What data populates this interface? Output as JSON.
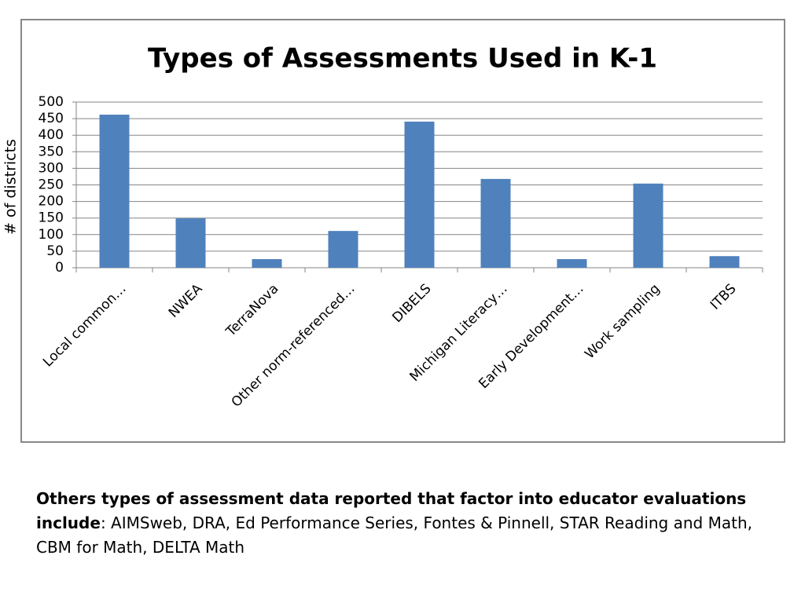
{
  "chart_data": {
    "type": "bar",
    "title": "Types of Assessments Used in K-1",
    "y_label": "# of districts",
    "categories": [
      "Local common…",
      "NWEA",
      "TerraNova",
      "Other norm-referenced…",
      "DIBELS",
      "Michigan Literacy…",
      "Early Development…",
      "Work sampling",
      "ITBS"
    ],
    "values": [
      462,
      149,
      26,
      111,
      441,
      268,
      26,
      254,
      35
    ],
    "color": "#4f81bd",
    "ylim": [
      0,
      500
    ],
    "yticks": [
      0,
      50,
      100,
      150,
      200,
      250,
      300,
      350,
      400,
      450,
      500
    ],
    "grid": true
  },
  "caption": {
    "bold": "Others types of assessment data reported that factor into educator evaluations include",
    "text": ": AIMSweb, DRA, Ed Performance Series, Fontes & Pinnell, STAR Reading and Math, CBM for Math, DELTA Math"
  }
}
